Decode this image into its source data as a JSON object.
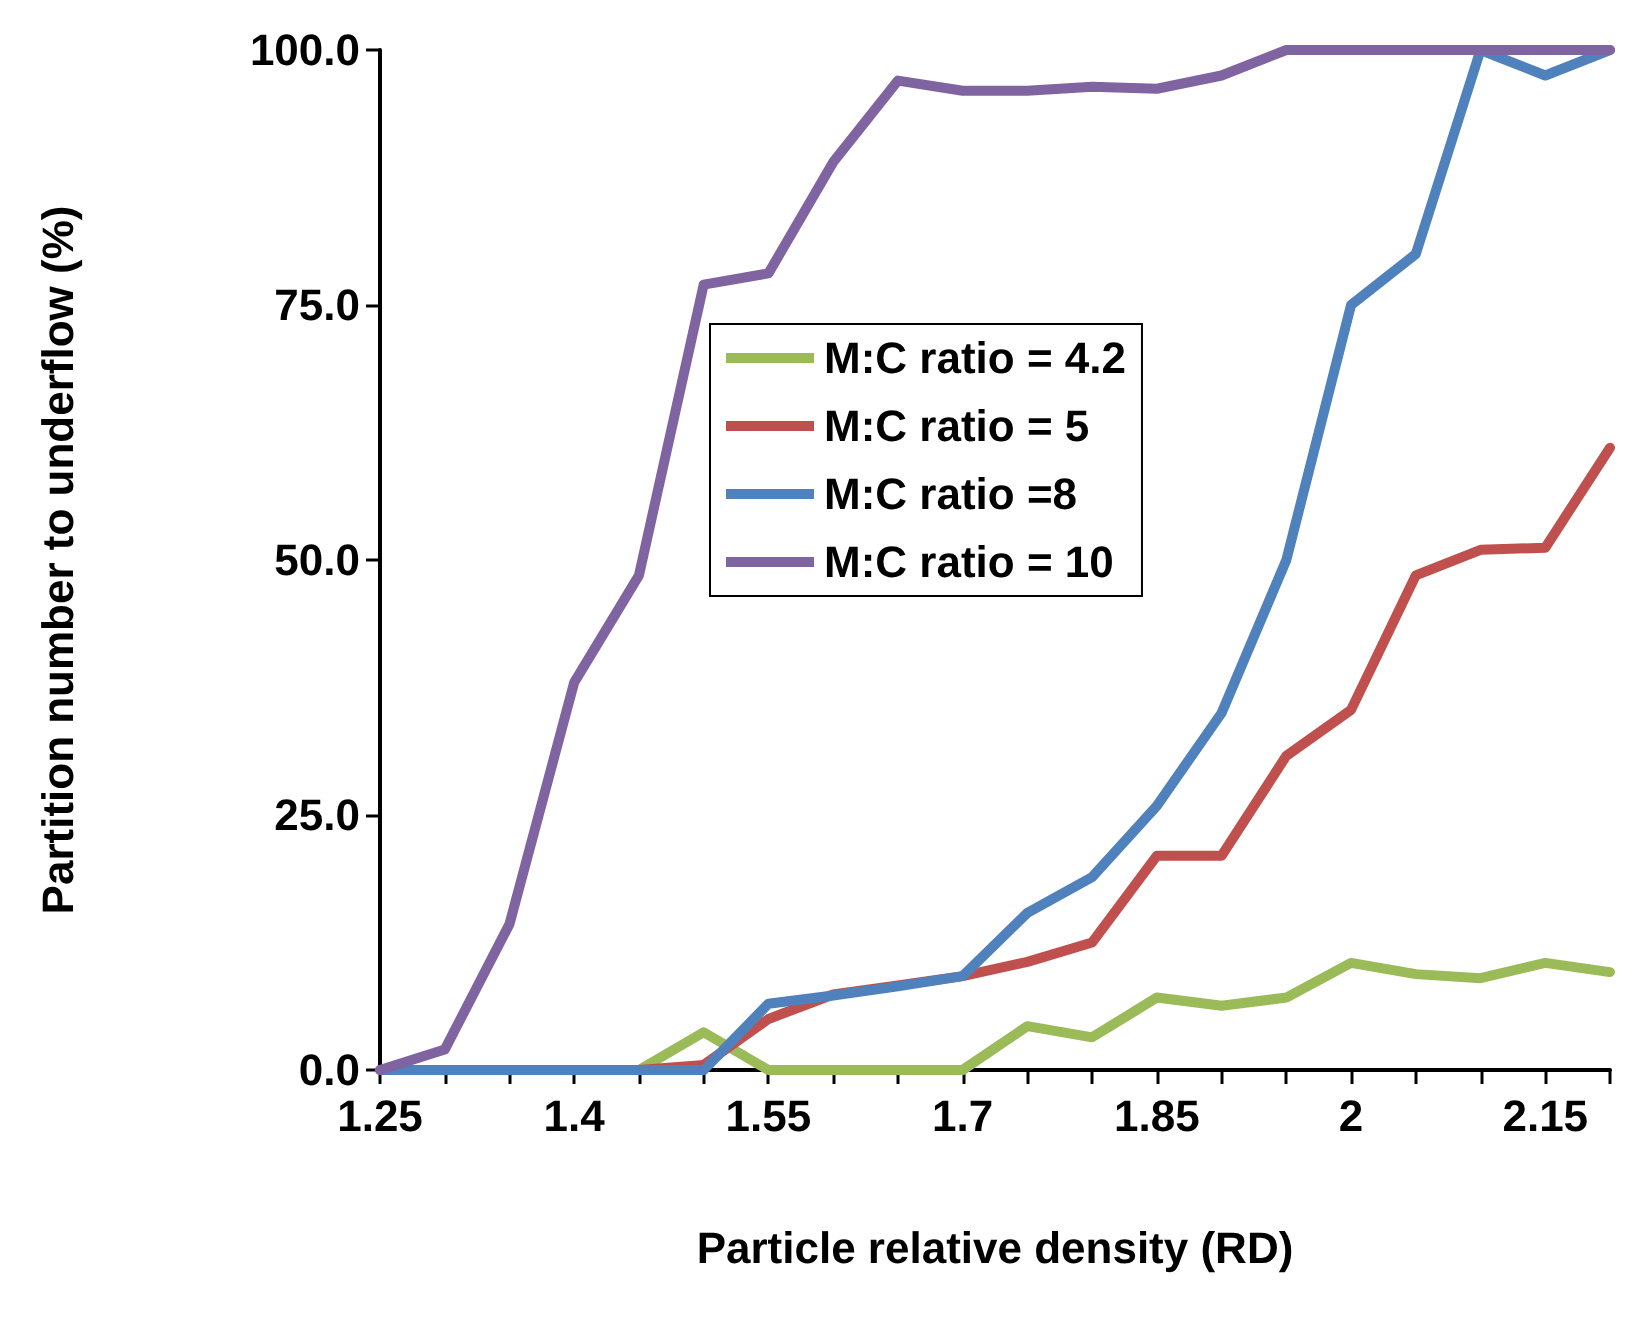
{
  "chart_data": {
    "type": "line",
    "xlabel": "Particle relative density (RD)",
    "ylabel": "Partition number to underflow (%)",
    "x": [
      1.25,
      1.3,
      1.35,
      1.4,
      1.45,
      1.5,
      1.55,
      1.6,
      1.65,
      1.7,
      1.75,
      1.8,
      1.85,
      1.9,
      1.95,
      2,
      2.05,
      2.1,
      2.15,
      2.2
    ],
    "series": [
      {
        "name": "M:C ratio = 4.2",
        "color": "#9bbb59",
        "values": [
          null,
          null,
          null,
          null,
          0,
          3.7,
          0,
          0,
          0,
          0,
          4.3,
          3.2,
          7.1,
          6.3,
          7.1,
          10.5,
          9.4,
          9,
          10.5,
          9.6
        ]
      },
      {
        "name": "M:C ratio = 5",
        "color": "#c0504d",
        "values": [
          null,
          null,
          null,
          null,
          0,
          0.5,
          5,
          7.4,
          8.3,
          9.2,
          10.6,
          12.5,
          21,
          21,
          30.8,
          35.3,
          48.5,
          51,
          51.2,
          61
        ]
      },
      {
        "name": "M:C ratio =8",
        "color": "#4f81bd",
        "values": [
          0,
          0,
          0,
          0,
          0,
          0,
          6.5,
          7.3,
          8.2,
          9.2,
          15.4,
          18.9,
          25.9,
          35,
          50,
          75,
          80,
          100,
          97.5,
          100
        ]
      },
      {
        "name": "M:C ratio = 10",
        "color": "#8064a2",
        "values": [
          0,
          2,
          14.3,
          38,
          48.5,
          77,
          78.1,
          89,
          97,
          96,
          96,
          96.4,
          96.2,
          97.5,
          100,
          100,
          100,
          100,
          100,
          100
        ]
      }
    ],
    "xlim": [
      1.25,
      2.2
    ],
    "xticks": [
      1.25,
      {
        "value": 1.3,
        "label": null
      },
      {
        "value": 1.35,
        "label": null
      },
      1.4,
      {
        "value": 1.45,
        "label": null
      },
      {
        "value": 1.5,
        "label": null
      },
      1.55,
      {
        "value": 1.6,
        "label": null
      },
      {
        "value": 1.65,
        "label": null
      },
      1.7,
      {
        "value": 1.75,
        "label": null
      },
      {
        "value": 1.8,
        "label": null
      },
      1.85,
      {
        "value": 1.9,
        "label": null
      },
      {
        "value": 1.95,
        "label": null
      },
      2,
      {
        "value": 2.05,
        "label": null
      },
      {
        "value": 2.1,
        "label": null
      },
      2.15,
      {
        "value": 2.2,
        "label": null
      }
    ],
    "ylim": [
      0,
      100
    ],
    "yticks": [
      {
        "value": 0,
        "label": "0.0"
      },
      {
        "value": 25,
        "label": "25.0"
      },
      {
        "value": 50,
        "label": "50.0"
      },
      {
        "value": 75,
        "label": "75.0"
      },
      {
        "value": 100,
        "label": "100.0"
      }
    ],
    "grid": false,
    "legend": "center",
    "marker": "none",
    "line_style": "solid"
  }
}
